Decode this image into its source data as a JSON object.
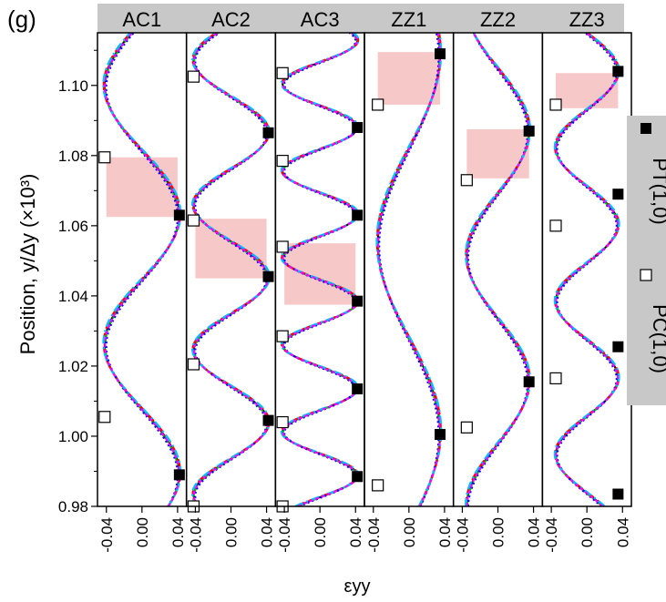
{
  "figure": {
    "panel_letter": "(g)",
    "ylabel": "Position, y/Δy (×10³)",
    "xlabel": "εyy"
  },
  "legend": {
    "position": "right",
    "items": [
      {
        "label": "PT(1,0)",
        "marker": "filled-square"
      },
      {
        "label": "PC(1,0)",
        "marker": "open-square"
      }
    ]
  },
  "style": {
    "header_fill": "#c8c8c8",
    "highlight_fill": "#f4b6b6",
    "series_colors": [
      "#000000",
      "#00c000",
      "#ff0000",
      "#0000ff",
      "#00c0ff",
      "#ff00ff"
    ]
  },
  "chart_data": {
    "type": "line",
    "xlim": [
      -0.05,
      0.05
    ],
    "ylim": [
      0.98,
      1.115
    ],
    "xticks": [
      -0.04,
      0.0,
      0.04
    ],
    "xtick_labels": [
      "-0.04",
      "0.00",
      "0.04"
    ],
    "yticks": [
      0.98,
      1.0,
      1.02,
      1.04,
      1.06,
      1.08,
      1.1
    ],
    "ytick_labels": [
      "0.98",
      "1.00",
      "1.02",
      "1.04",
      "1.06",
      "1.08",
      "1.10"
    ],
    "panels": [
      {
        "name": "AC1",
        "amplitude": 0.042,
        "period": 0.0737,
        "phase_y": 1.063,
        "pt_points": [
          1.063,
          0.989
        ],
        "pc_points": [
          1.0795,
          1.0055
        ],
        "highlight": {
          "x": [
            -0.04,
            0.04
          ],
          "y": [
            1.0625,
            1.0795
          ]
        }
      },
      {
        "name": "AC2",
        "amplitude": 0.042,
        "period": 0.0413,
        "phase_y": 1.0865,
        "pt_points": [
          1.0865,
          1.0455,
          1.0045
        ],
        "pc_points": [
          1.1025,
          1.0615,
          1.0205,
          0.98
        ],
        "highlight": {
          "x": [
            -0.04,
            0.04
          ],
          "y": [
            1.045,
            1.062
          ]
        }
      },
      {
        "name": "AC3",
        "amplitude": 0.042,
        "period": 0.0248,
        "phase_y": 1.088,
        "pt_points": [
          1.088,
          1.063,
          1.0385,
          1.0135,
          0.9885
        ],
        "pc_points": [
          1.1035,
          1.0785,
          1.054,
          1.0285,
          1.004,
          0.98
        ],
        "highlight": {
          "x": [
            -0.04,
            0.04
          ],
          "y": [
            1.0375,
            1.055
          ]
        }
      },
      {
        "name": "ZZ1",
        "amplitude": 0.035,
        "period": 0.108,
        "phase_y": 1.109,
        "pt_points": [
          1.109,
          1.0005
        ],
        "pc_points": [
          1.0945,
          0.986
        ],
        "highlight": {
          "x": [
            -0.035,
            0.035
          ],
          "y": [
            1.0945,
            1.1095
          ]
        }
      },
      {
        "name": "ZZ2",
        "amplitude": 0.035,
        "period": 0.0713,
        "phase_y": 1.087,
        "pt_points": [
          1.087,
          1.0155
        ],
        "pc_points": [
          1.073,
          1.0025
        ],
        "highlight": {
          "x": [
            -0.035,
            0.035
          ],
          "y": [
            1.0735,
            1.0875
          ]
        }
      },
      {
        "name": "ZZ3",
        "amplitude": 0.035,
        "period": 0.0437,
        "phase_y": 1.104,
        "pt_points": [
          1.104,
          1.069,
          1.0255,
          0.9835
        ],
        "pc_points": [
          1.0945,
          1.06,
          1.0165
        ],
        "highlight": {
          "x": [
            -0.035,
            0.035
          ],
          "y": [
            1.0935,
            1.1035
          ]
        }
      }
    ]
  }
}
